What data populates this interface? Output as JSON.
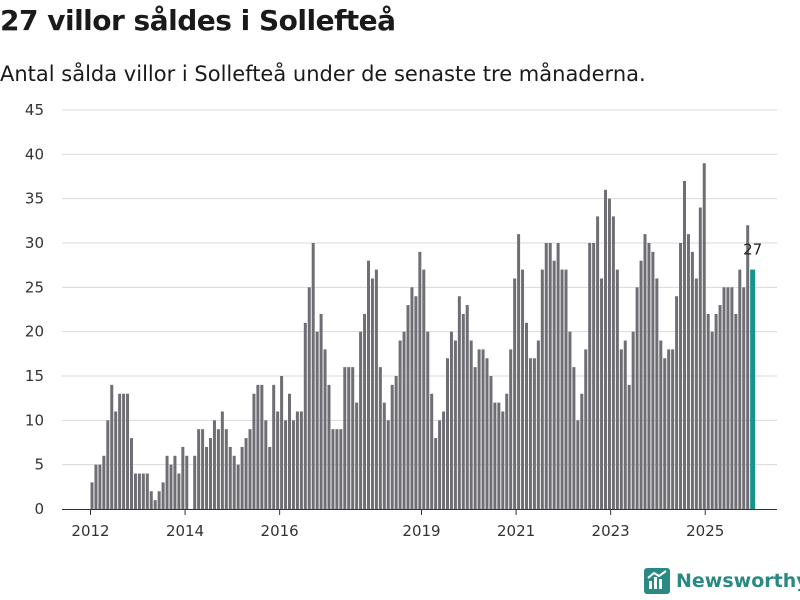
{
  "header": {
    "title": "27 villor såldes i Sollefteå",
    "subtitle": "Antal sålda villor i Sollefteå under de senaste tre månaderna."
  },
  "brand": {
    "name": "Newsworthy"
  },
  "colors": {
    "bar": "#6f6e74",
    "highlight": "#16948a",
    "grid": "#d9d9d9",
    "brand": "#2a8a83"
  },
  "chart_data": {
    "type": "bar",
    "title": "27 villor såldes i Sollefteå",
    "subtitle": "Antal sålda villor i Sollefteå under de senaste tre månaderna.",
    "xlabel": "",
    "ylabel": "",
    "ylim": [
      0,
      45
    ],
    "yticks": [
      0,
      5,
      10,
      15,
      20,
      25,
      30,
      35,
      40,
      45
    ],
    "xticks": [
      "2012",
      "2014",
      "2016",
      "2019",
      "2021",
      "2023",
      "2025"
    ],
    "xtick_positions": [
      0,
      2,
      4,
      7,
      9,
      11,
      13
    ],
    "x_start_year": 2012,
    "x_end_year": 2025.95,
    "grid": true,
    "highlight_last": true,
    "last_label": "27",
    "values": [
      3,
      5,
      5,
      6,
      10,
      14,
      11,
      13,
      13,
      13,
      8,
      4,
      4,
      4,
      4,
      2,
      1,
      2,
      3,
      6,
      5,
      6,
      4,
      7,
      6,
      0,
      6,
      9,
      9,
      7,
      8,
      10,
      9,
      11,
      9,
      7,
      6,
      5,
      7,
      8,
      9,
      13,
      14,
      14,
      10,
      7,
      14,
      11,
      15,
      10,
      13,
      10,
      11,
      11,
      21,
      25,
      30,
      20,
      22,
      18,
      14,
      9,
      9,
      9,
      16,
      16,
      16,
      12,
      20,
      22,
      28,
      26,
      27,
      16,
      12,
      10,
      14,
      15,
      19,
      20,
      23,
      25,
      24,
      29,
      27,
      20,
      13,
      8,
      10,
      11,
      17,
      20,
      19,
      24,
      22,
      23,
      19,
      16,
      18,
      18,
      17,
      15,
      12,
      12,
      11,
      13,
      18,
      26,
      31,
      27,
      21,
      17,
      17,
      19,
      27,
      30,
      30,
      28,
      30,
      27,
      27,
      20,
      16,
      10,
      13,
      18,
      30,
      30,
      33,
      26,
      36,
      35,
      33,
      27,
      18,
      19,
      14,
      20,
      25,
      28,
      31,
      30,
      29,
      26,
      19,
      17,
      18,
      18,
      24,
      30,
      37,
      31,
      29,
      26,
      34,
      39,
      22,
      20,
      22,
      23,
      25,
      25,
      25,
      22,
      27,
      25,
      32,
      27
    ]
  }
}
